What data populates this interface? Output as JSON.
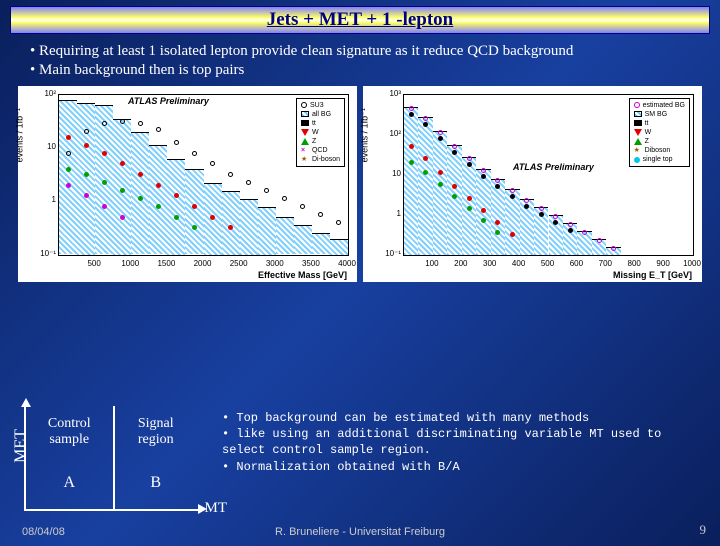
{
  "slide": {
    "title": "Jets + MET + 1 -lepton",
    "bullets": [
      "• Requiring at least 1 isolated lepton provide clean signature as it reduce QCD background",
      "• Main background then is top pairs"
    ],
    "mono_bullets": [
      "• Top background can be estimated with many methods",
      "• like using an additional discriminating variable MT used to select control sample region.",
      "• Normalization obtained with B/A"
    ],
    "footer": {
      "date": "08/04/08",
      "author": "R. Bruneliere - Universitat Freiburg",
      "page": "9"
    }
  },
  "diagram": {
    "y_axis": "MET",
    "x_axis": "MT",
    "left_top": "Control",
    "left_bot": "sample",
    "right_top": "Signal",
    "right_bot": "region",
    "A": "A",
    "B": "B"
  },
  "chart_left": {
    "type": "histogram-step-log",
    "ylabel": "events / 1fb⁻¹",
    "xlabel": "Effective Mass [GeV]",
    "atlas": "ATLAS Preliminary",
    "xlim": [
      0,
      4000
    ],
    "xticks": [
      500,
      1000,
      1500,
      2000,
      2500,
      3000,
      3500,
      4000
    ],
    "ylim_log": [
      -1,
      2
    ],
    "yticks": [
      "10⁻¹",
      "1",
      "10",
      "10²"
    ],
    "bg_color": "#ffffff",
    "legend": [
      {
        "label": "SU3",
        "type": "open-circle",
        "color": "#000000"
      },
      {
        "label": "all BG",
        "type": "hatch",
        "color": "#66c2ff"
      },
      {
        "label": "tt",
        "type": "square",
        "color": "#000000"
      },
      {
        "label": "W",
        "type": "tri-down",
        "color": "#e00000"
      },
      {
        "label": "Z",
        "type": "tri-up",
        "color": "#00a000"
      },
      {
        "label": "QCD",
        "type": "cross",
        "color": "#d000d0"
      },
      {
        "label": "Di-boson",
        "type": "star",
        "color": "#a06000"
      }
    ],
    "all_bg_heights_log": [
      1.9,
      1.85,
      1.8,
      1.55,
      1.3,
      1.05,
      0.8,
      0.6,
      0.35,
      0.2,
      0.05,
      -0.1,
      -0.3,
      -0.45,
      -0.6,
      -0.7
    ],
    "su3_heights_log": [
      0.9,
      1.3,
      1.45,
      1.5,
      1.45,
      1.35,
      1.1,
      0.9,
      0.7,
      0.5,
      0.35,
      0.2,
      0.05,
      -0.1,
      -0.25,
      -0.4
    ],
    "W_heights_log": [
      1.2,
      1.05,
      0.9,
      0.7,
      0.5,
      0.3,
      0.1,
      -0.1,
      -0.3,
      -0.5
    ],
    "Z_heights_log": [
      0.6,
      0.5,
      0.35,
      0.2,
      0.05,
      -0.1,
      -0.3,
      -0.5
    ],
    "QCD_heights_log": [
      0.3,
      0.1,
      -0.1,
      -0.3
    ],
    "bin_width_gev": 250
  },
  "chart_right": {
    "type": "histogram-step-log",
    "ylabel": "events / 1fb⁻¹",
    "xlabel": "Missing E_T [GeV]",
    "atlas": "ATLAS Preliminary",
    "xlim": [
      0,
      1000
    ],
    "xticks": [
      100,
      200,
      300,
      400,
      500,
      600,
      700,
      800,
      900,
      1000
    ],
    "ylim_log": [
      -1,
      3
    ],
    "yticks": [
      "10⁻¹",
      "1",
      "10",
      "10²",
      "10³"
    ],
    "bg_color": "#ffffff",
    "legend": [
      {
        "label": "estimated BG",
        "type": "open-circle",
        "color": "#d000d0"
      },
      {
        "label": "SM BG",
        "type": "hatch",
        "color": "#66c2ff"
      },
      {
        "label": "tt",
        "type": "square",
        "color": "#000000"
      },
      {
        "label": "W",
        "type": "tri-down",
        "color": "#e00000"
      },
      {
        "label": "Z",
        "type": "tri-up",
        "color": "#00a000"
      },
      {
        "label": "Diboson",
        "type": "star",
        "color": "#a06000"
      },
      {
        "label": "single top",
        "type": "circle",
        "color": "#00c8e8"
      }
    ],
    "sm_bg_heights_log": [
      2.7,
      2.45,
      2.1,
      1.75,
      1.45,
      1.15,
      0.9,
      0.65,
      0.4,
      0.2,
      0.0,
      -0.2,
      -0.4,
      -0.6,
      -0.8
    ],
    "est_bg_heights_log": [
      2.65,
      2.4,
      2.05,
      1.7,
      1.4,
      1.1,
      0.85,
      0.6,
      0.35,
      0.15,
      -0.05,
      -0.25,
      -0.45,
      -0.65,
      -0.85
    ],
    "tt_heights_log": [
      2.5,
      2.25,
      1.9,
      1.55,
      1.25,
      0.95,
      0.7,
      0.45,
      0.2,
      0.0,
      -0.2,
      -0.4
    ],
    "W_heights_log": [
      1.7,
      1.4,
      1.05,
      0.7,
      0.4,
      0.1,
      -0.2,
      -0.5
    ],
    "Z_heights_log": [
      1.3,
      1.05,
      0.75,
      0.45,
      0.15,
      -0.15,
      -0.45
    ],
    "bin_width_gev": 50
  },
  "colors": {
    "slide_bg_start": "#0a1f5c",
    "slide_bg_mid": "#1840a0",
    "title_text": "#000080",
    "text": "#ffffff",
    "mono_text": "#ffffff",
    "hatch": "#66c2ff",
    "su3": "#000000",
    "tt": "#000000",
    "W": "#e00000",
    "Z": "#00a000",
    "QCD": "#d000d0",
    "diboson": "#a06000",
    "singletop": "#00c8e8",
    "est_bg": "#d000d0"
  }
}
